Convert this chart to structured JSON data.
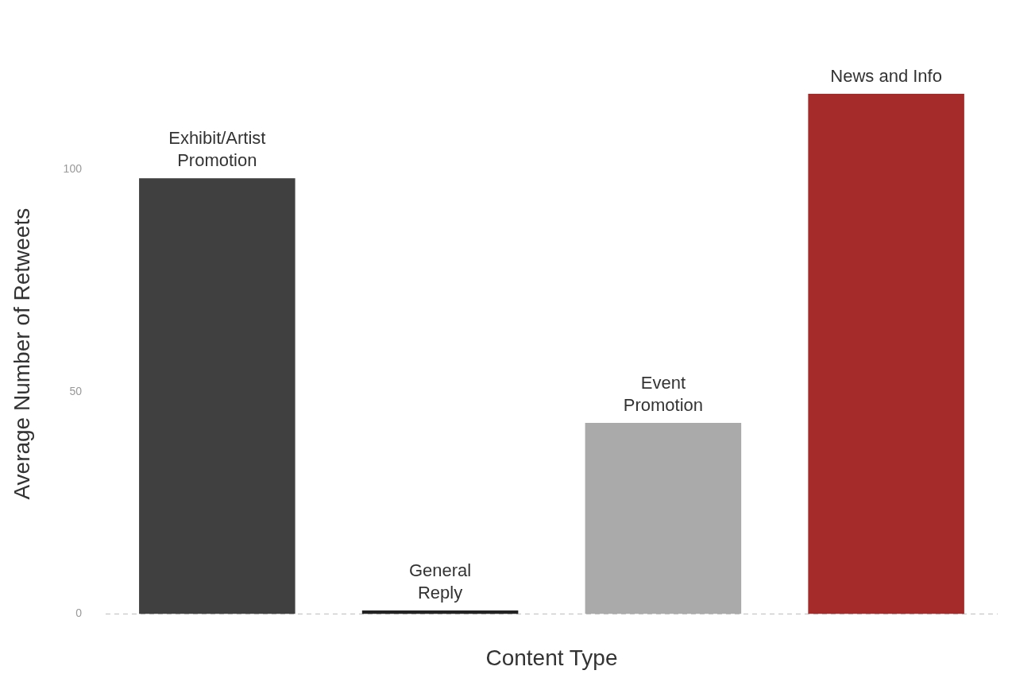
{
  "chart_data": {
    "type": "bar",
    "xlabel": "Content Type",
    "ylabel": "Average Number of Retweets",
    "categories": [
      "Exhibit/Artist\nPromotion",
      "General\nReply",
      "Event\nPromotion",
      "News and Info"
    ],
    "values": [
      98,
      0.8,
      43,
      117
    ],
    "colors": [
      "#404040",
      "#222222",
      "#aaaaaa",
      "#a52a2a"
    ],
    "ylim": [
      0,
      117
    ],
    "yticks": [
      0,
      50,
      100
    ],
    "grid": false,
    "tick_labels": "y",
    "ref_lines": [
      {
        "axis": "y",
        "value": 0,
        "color": "#bbbbbb",
        "line_style": "dashed"
      }
    ]
  }
}
